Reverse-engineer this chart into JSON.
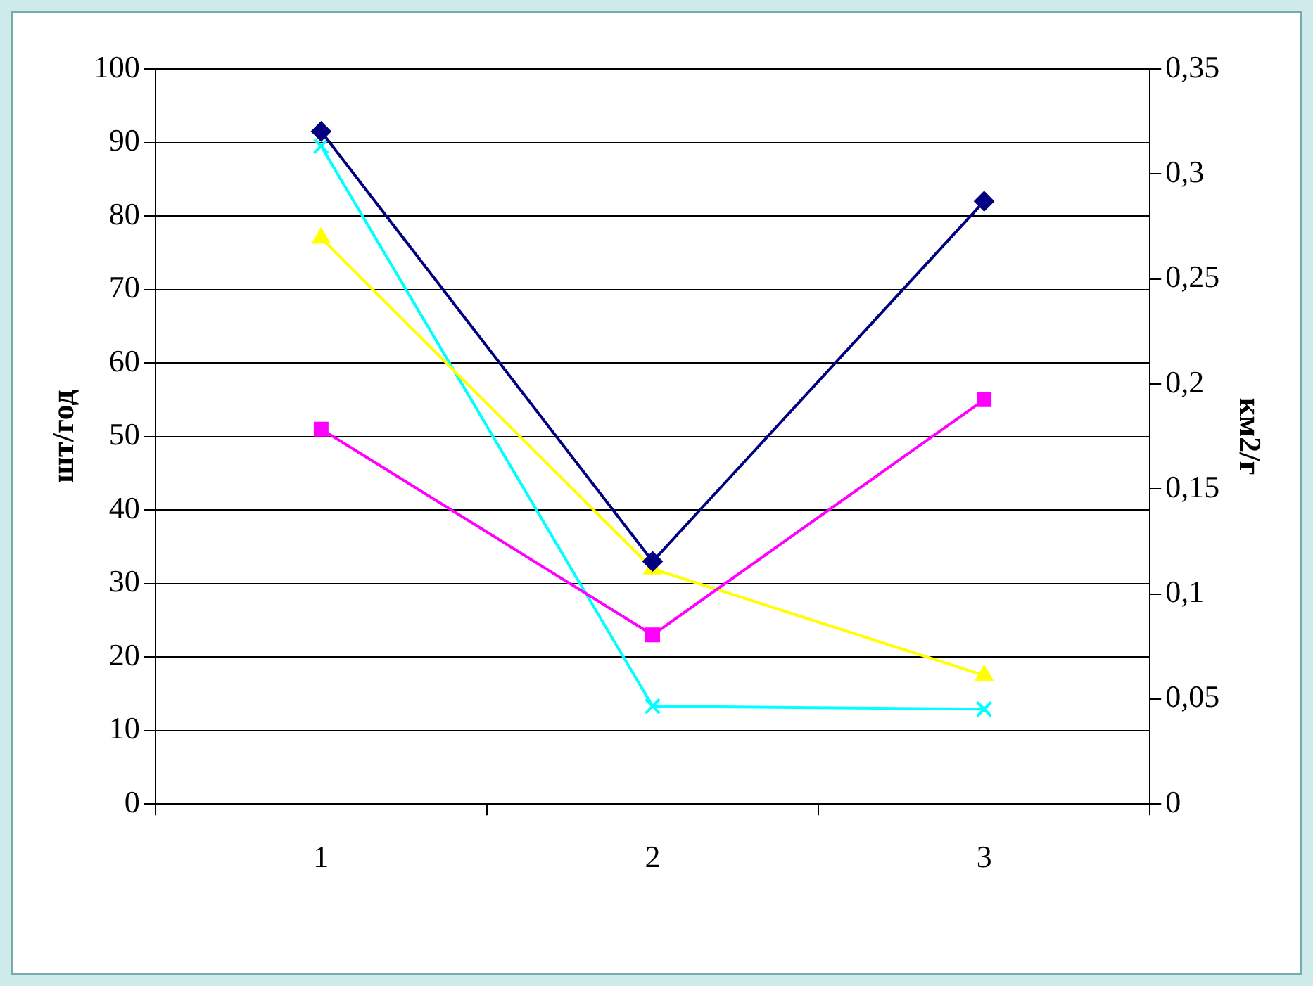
{
  "chart_data": {
    "type": "line",
    "categories": [
      "1",
      "2",
      "3"
    ],
    "ylabel": "шт/год",
    "y2label": "км2/г",
    "ylim": [
      0,
      100
    ],
    "yticks": [
      0,
      10,
      20,
      30,
      40,
      50,
      60,
      70,
      80,
      90,
      100
    ],
    "y2lim": [
      0,
      0.35
    ],
    "y2ticks": [
      {
        "value": 0,
        "label": "0"
      },
      {
        "value": 0.05,
        "label": "0,05"
      },
      {
        "value": 0.1,
        "label": "0,1"
      },
      {
        "value": 0.15,
        "label": "0,15"
      },
      {
        "value": 0.2,
        "label": "0,2"
      },
      {
        "value": 0.25,
        "label": "0,25"
      },
      {
        "value": 0.3,
        "label": "0,3"
      },
      {
        "value": 0.35,
        "label": "0,35"
      }
    ],
    "grid": "y",
    "legend": false,
    "series": [
      {
        "color": "#000080",
        "marker": "diamond",
        "values": [
          91.5,
          33,
          82
        ]
      },
      {
        "color": "#ff00ff",
        "marker": "square",
        "values": [
          51,
          23,
          55
        ]
      },
      {
        "color": "#ffff00",
        "marker": "triangle",
        "values": [
          77,
          32,
          17.5
        ]
      },
      {
        "color": "#00ffff",
        "marker": "cross",
        "values": [
          89.5,
          13.3,
          12.9
        ]
      }
    ]
  }
}
